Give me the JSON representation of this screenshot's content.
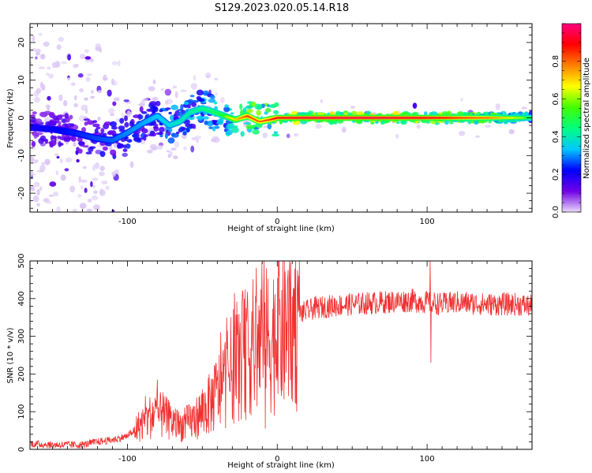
{
  "title": "S129.2023.020.05.14.R18",
  "chart_data": [
    {
      "type": "heatmap",
      "xlabel": "Height of straight line (km)",
      "ylabel": "Frequency (Hz)",
      "xlim": [
        -165,
        170
      ],
      "ylim": [
        -25,
        25
      ],
      "xticks": [
        -100,
        0,
        100
      ],
      "yticks": [
        -20,
        -10,
        0,
        10,
        20
      ],
      "colorbar": {
        "label": "Normalized spectral amplitude",
        "range": [
          0.0,
          1.0
        ],
        "ticks": [
          "0.0",
          "0.2",
          "0.4",
          "0.6",
          "0.8"
        ],
        "colormap": [
          "#e8d8f8",
          "#7000e8",
          "#0000ff",
          "#00c8ff",
          "#00ff80",
          "#40ff00",
          "#ffff00",
          "#ff8000",
          "#ff0000",
          "#ff0080"
        ]
      },
      "dominant_line": {
        "x": [
          -165,
          -150,
          -135,
          -120,
          -110,
          -100,
          -90,
          -80,
          -72,
          -65,
          -58,
          -50,
          -42,
          -35,
          -28,
          -20,
          -12,
          -5,
          0,
          20,
          60,
          100,
          140,
          170
        ],
        "y": [
          -2.5,
          -3.0,
          -4.0,
          -5.5,
          -6.0,
          -4.0,
          -1.5,
          0.5,
          -2.0,
          -1.0,
          1.5,
          2.5,
          1.5,
          0.5,
          -0.5,
          0.5,
          -1.0,
          -0.5,
          0.0,
          0.0,
          0.0,
          0.0,
          0.0,
          0.0
        ],
        "amplitude": [
          0.2,
          0.22,
          0.25,
          0.28,
          0.3,
          0.33,
          0.35,
          0.38,
          0.42,
          0.45,
          0.48,
          0.5,
          0.55,
          0.6,
          0.7,
          0.85,
          0.8,
          0.85,
          0.9,
          0.95,
          0.95,
          0.92,
          0.8,
          0.55
        ]
      }
    },
    {
      "type": "line",
      "xlabel": "Height of straight line (km)",
      "ylabel": "SNR (10 * v/v)",
      "xlim": [
        -165,
        170
      ],
      "ylim": [
        0,
        500
      ],
      "xticks": [
        -100,
        0,
        100
      ],
      "yticks": [
        0,
        100,
        200,
        300,
        400,
        500
      ],
      "series_color": "#f03030",
      "series": [
        {
          "x": [
            -165,
            -150,
            -130,
            -120,
            -110,
            -100,
            -90,
            -82,
            -75,
            -65,
            -55,
            -45,
            -35,
            -28,
            -20,
            -12,
            -5,
            0,
            5,
            10,
            15,
            25,
            35,
            50,
            70,
            90,
            100,
            102,
            110,
            120,
            140,
            160,
            170
          ],
          "y": [
            15,
            12,
            12,
            20,
            25,
            35,
            70,
            95,
            85,
            60,
            80,
            120,
            180,
            230,
            260,
            280,
            290,
            300,
            320,
            340,
            360,
            375,
            380,
            385,
            390,
            395,
            390,
            390,
            385,
            390,
            385,
            385,
            380
          ],
          "spikes": [
            {
              "x": -80,
              "y": 185
            },
            {
              "x": -22,
              "y": 400
            },
            {
              "x": -10,
              "y": 350
            },
            {
              "x": -8,
              "y": 55
            },
            {
              "x": 10,
              "y": 405
            },
            {
              "x": 13,
              "y": 100
            },
            {
              "x": 102,
              "y": 500
            },
            {
              "x": 102.5,
              "y": 230
            },
            {
              "x": 115,
              "y": 415
            }
          ]
        }
      ]
    }
  ]
}
